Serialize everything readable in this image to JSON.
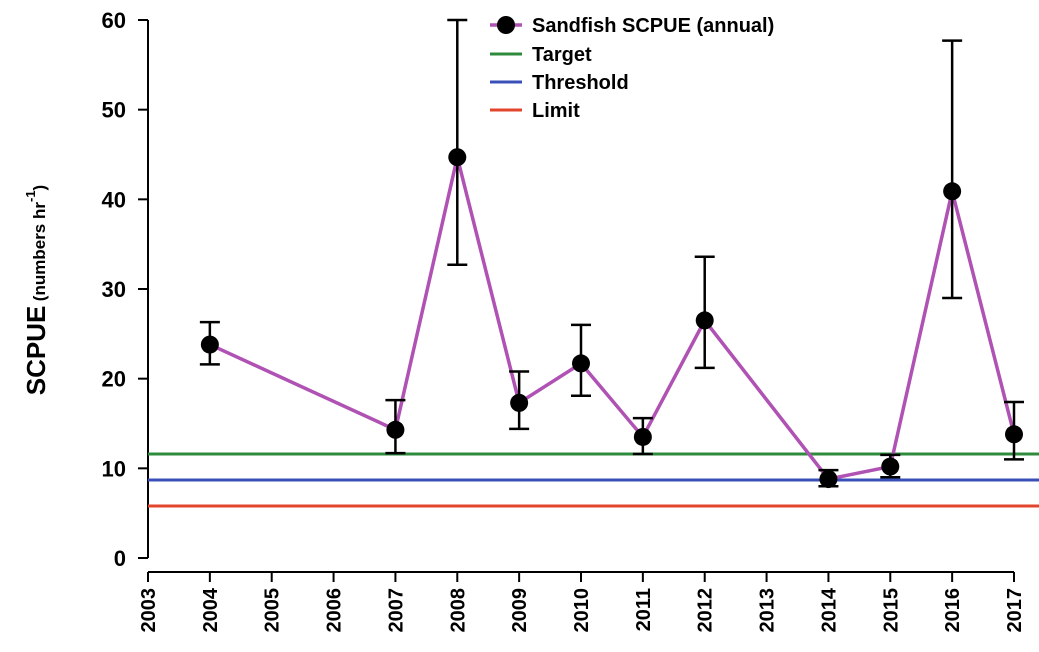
{
  "chart_data": {
    "type": "line",
    "ylabel": "SCPUE",
    "ylabel_units": "(numbers hr",
    "ylabel_units_exponent": "-1",
    "ylabel_units_close": ")",
    "x": [
      2004,
      2007,
      2008,
      2009,
      2010,
      2011,
      2012,
      2014,
      2015,
      2016,
      2017
    ],
    "series": [
      {
        "name": "Sandfish SCPUE (annual)",
        "color": "#b052b4",
        "values": [
          23.8,
          14.3,
          44.7,
          17.3,
          21.7,
          13.5,
          26.5,
          8.8,
          10.2,
          40.9,
          13.8
        ],
        "lower": [
          21.6,
          11.7,
          32.7,
          14.4,
          18.1,
          11.6,
          21.2,
          8.0,
          9.0,
          29.0,
          11.0
        ],
        "upper": [
          26.3,
          17.6,
          60,
          20.8,
          26.0,
          15.6,
          33.6,
          9.8,
          11.5,
          57.7,
          17.4
        ]
      }
    ],
    "reference_lines": [
      {
        "name": "Target",
        "color": "#2e8b3e",
        "value": 11.6
      },
      {
        "name": "Threshold",
        "color": "#3a50b8",
        "value": 8.7
      },
      {
        "name": "Limit",
        "color": "#e2452c",
        "value": 5.8
      }
    ],
    "xlim": [
      2003,
      2017
    ],
    "xticks": [
      2003,
      2004,
      2005,
      2006,
      2007,
      2008,
      2009,
      2010,
      2011,
      2012,
      2013,
      2014,
      2015,
      2016,
      2017
    ],
    "ylim": [
      0,
      60
    ],
    "yticks": [
      0,
      10,
      20,
      30,
      40,
      50,
      60
    ],
    "legend": "top-right"
  }
}
